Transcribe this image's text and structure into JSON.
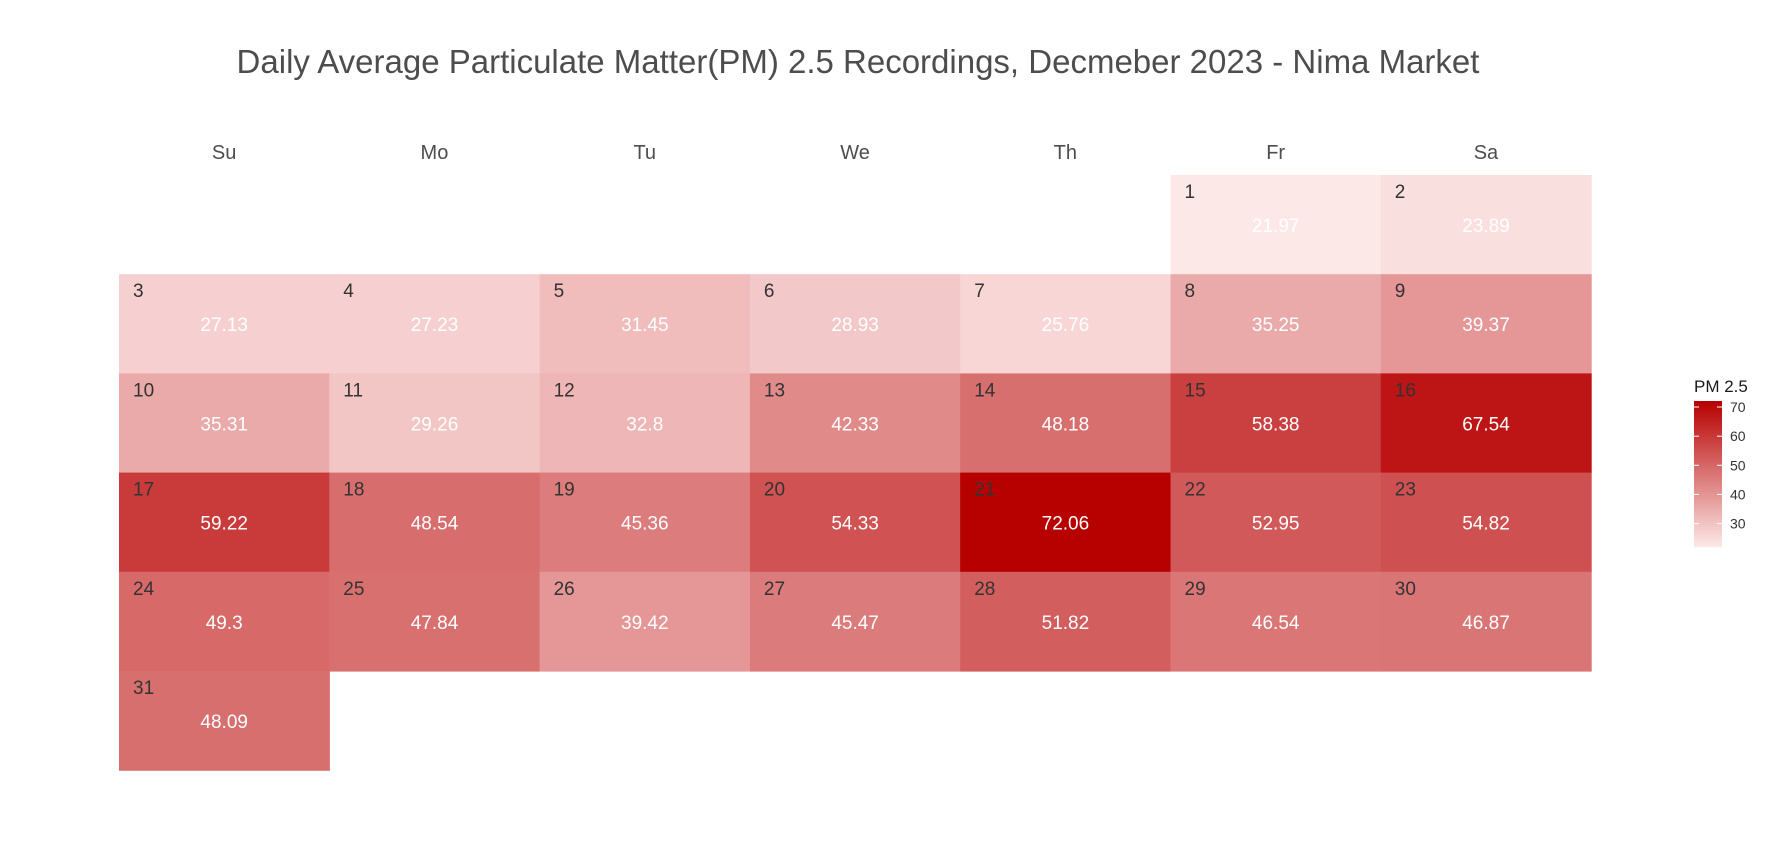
{
  "chart_data": {
    "type": "heatmap",
    "title": "Daily Average Particulate Matter(PM) 2.5 Recordings, Decmeber 2023 - Nima Market",
    "weekdays": [
      "Su",
      "Mo",
      "Tu",
      "We",
      "Th",
      "Fr",
      "Sa"
    ],
    "first_weekday_index": 5,
    "days": [
      {
        "day": "1",
        "value": 21.97,
        "label": "21.97"
      },
      {
        "day": "2",
        "value": 23.89,
        "label": "23.89"
      },
      {
        "day": "3",
        "value": 27.13,
        "label": "27.13"
      },
      {
        "day": "4",
        "value": 27.23,
        "label": "27.23"
      },
      {
        "day": "5",
        "value": 31.45,
        "label": "31.45"
      },
      {
        "day": "6",
        "value": 28.93,
        "label": "28.93"
      },
      {
        "day": "7",
        "value": 25.76,
        "label": "25.76"
      },
      {
        "day": "8",
        "value": 35.25,
        "label": "35.25"
      },
      {
        "day": "9",
        "value": 39.37,
        "label": "39.37"
      },
      {
        "day": "10",
        "value": 35.31,
        "label": "35.31"
      },
      {
        "day": "11",
        "value": 29.26,
        "label": "29.26"
      },
      {
        "day": "12",
        "value": 32.8,
        "label": "32.8"
      },
      {
        "day": "13",
        "value": 42.33,
        "label": "42.33"
      },
      {
        "day": "14",
        "value": 48.18,
        "label": "48.18"
      },
      {
        "day": "15",
        "value": 58.38,
        "label": "58.38"
      },
      {
        "day": "16",
        "value": 67.54,
        "label": "67.54"
      },
      {
        "day": "17",
        "value": 59.22,
        "label": "59.22"
      },
      {
        "day": "18",
        "value": 48.54,
        "label": "48.54"
      },
      {
        "day": "19",
        "value": 45.36,
        "label": "45.36"
      },
      {
        "day": "20",
        "value": 54.33,
        "label": "54.33"
      },
      {
        "day": "21",
        "value": 72.06,
        "label": "72.06"
      },
      {
        "day": "22",
        "value": 52.95,
        "label": "52.95"
      },
      {
        "day": "23",
        "value": 54.82,
        "label": "54.82"
      },
      {
        "day": "24",
        "value": 49.3,
        "label": "49.3"
      },
      {
        "day": "25",
        "value": 47.84,
        "label": "47.84"
      },
      {
        "day": "26",
        "value": 39.42,
        "label": "39.42"
      },
      {
        "day": "27",
        "value": 45.47,
        "label": "45.47"
      },
      {
        "day": "28",
        "value": 51.82,
        "label": "51.82"
      },
      {
        "day": "29",
        "value": 46.54,
        "label": "46.54"
      },
      {
        "day": "30",
        "value": 46.87,
        "label": "46.87"
      },
      {
        "day": "31",
        "value": 48.09,
        "label": "48.09"
      }
    ],
    "legend": {
      "title": "PM 2.5",
      "placement": "right",
      "ticks": [
        {
          "value": 30,
          "label": "30"
        },
        {
          "value": 40,
          "label": "40"
        },
        {
          "value": 50,
          "label": "50"
        },
        {
          "value": 60,
          "label": "60"
        },
        {
          "value": 70,
          "label": "70"
        }
      ]
    },
    "color_scale": {
      "min": 21.97,
      "max": 72.06,
      "low_color": "#fde8e8",
      "high_color": "#b70000"
    }
  }
}
